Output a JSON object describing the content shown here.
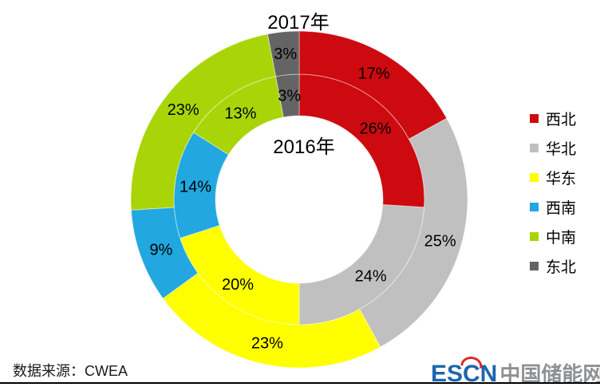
{
  "chart": {
    "outer_ring_title": "2017年",
    "inner_ring_title": "2016年"
  },
  "chart_data": {
    "type": "pie",
    "subtype": "double-donut",
    "unit": "%",
    "start_angle_deg": 0,
    "direction": "clockwise",
    "legend_position": "right",
    "categories": [
      "西北",
      "华北",
      "华东",
      "西南",
      "中南",
      "东北"
    ],
    "colors": [
      "#CD0A10",
      "#C0C0C0",
      "#FFFF00",
      "#22A7E0",
      "#A9D508",
      "#646464"
    ],
    "series": [
      {
        "name": "2016年",
        "ring": "inner",
        "values": [
          26,
          24,
          20,
          14,
          13,
          3
        ]
      },
      {
        "name": "2017年",
        "ring": "outer",
        "values": [
          17,
          25,
          23,
          9,
          23,
          3
        ]
      }
    ],
    "label_color": "#000000"
  },
  "footer": {
    "source_label": "数据来源：CWEA",
    "brand": {
      "latin": "ESCN",
      "chinese": "中国储能网",
      "latin_color": "#1D66AD",
      "chinese_color": "#8E9194",
      "accent_color": "#E3262B"
    }
  }
}
